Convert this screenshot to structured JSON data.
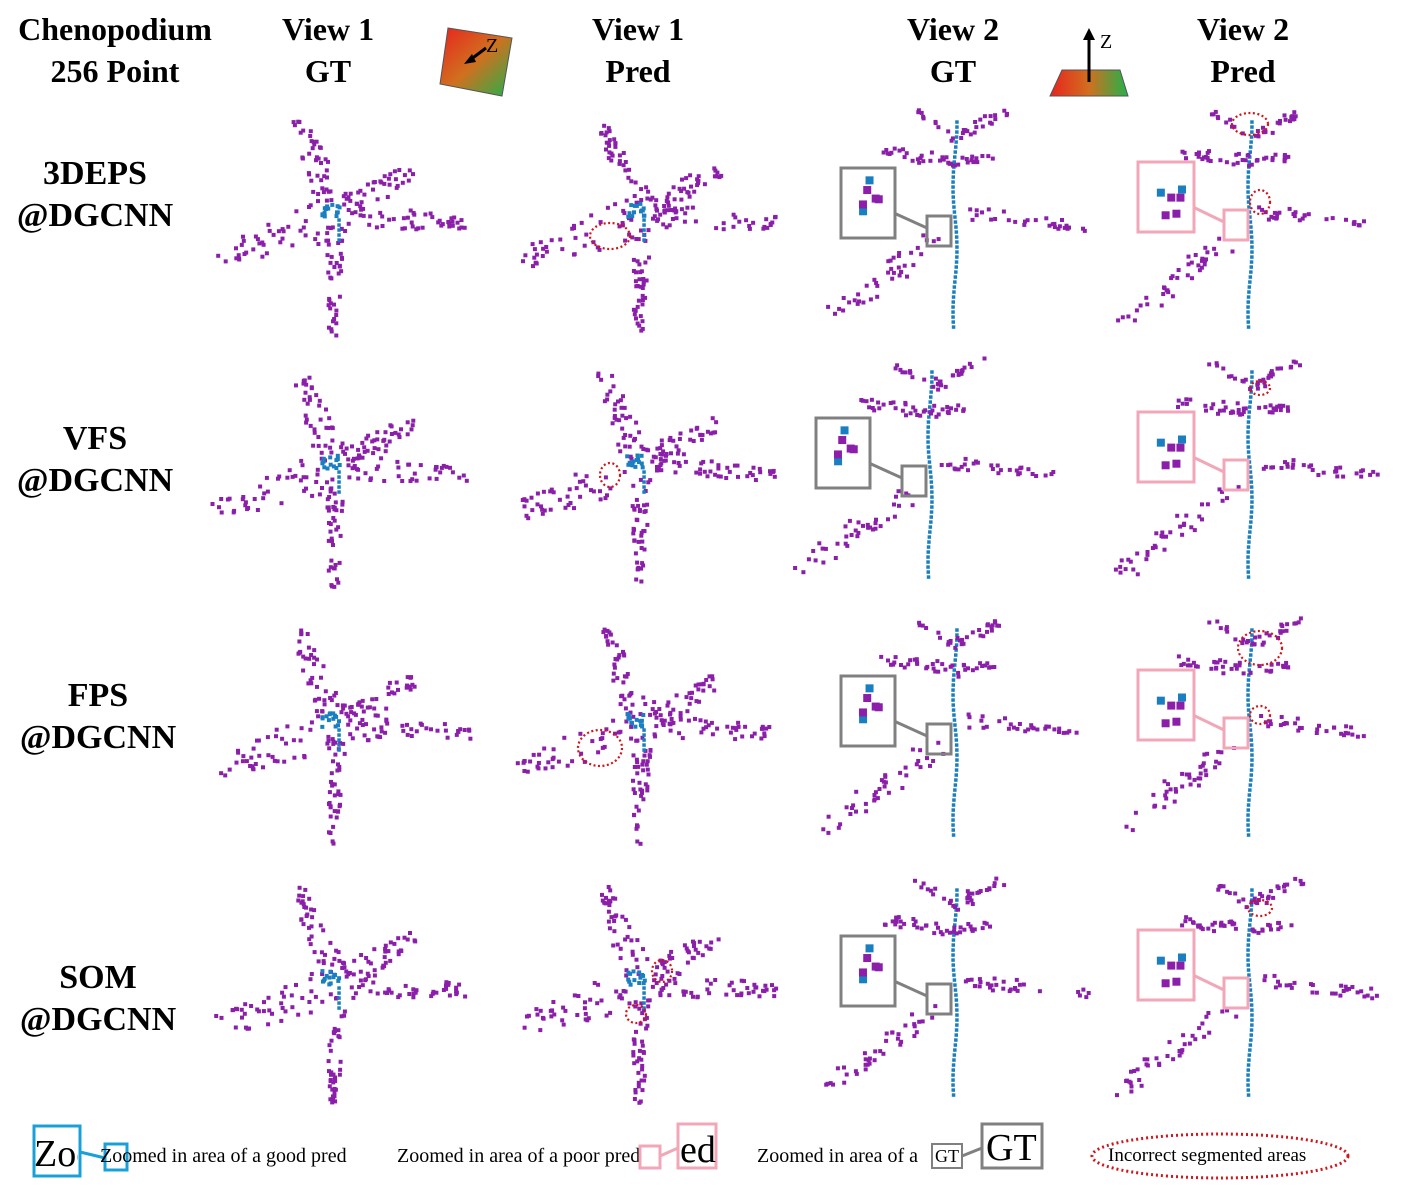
{
  "dataset_title": [
    "Chenopodium",
    "256 Point"
  ],
  "columns": [
    {
      "line1": "View 1",
      "line2": "GT"
    },
    {
      "line1": "View 1",
      "line2": "Pred"
    },
    {
      "line1": "View 2",
      "line2": "GT"
    },
    {
      "line1": "View 2",
      "line2": "Pred"
    }
  ],
  "axis_label": "Z",
  "rows": [
    {
      "line1": "3DEPS",
      "line2": "@DGCNN"
    },
    {
      "line1": "VFS",
      "line2": "@DGCNN"
    },
    {
      "line1": "FPS",
      "line2": "@DGCNN"
    },
    {
      "line1": "SOM",
      "line2": "@DGCNN"
    }
  ],
  "legend": {
    "good_pred": "Zoomed in area of a good pred",
    "good_pred_inset": "Zoo",
    "poor_pred": "Zoomed in area of a poor pred",
    "poor_pred_inset": "ed",
    "gt": "Zoomed in area of a",
    "gt_small": "GT",
    "gt_inset": "GT",
    "incorrect": "Incorrect segmented areas"
  },
  "colors": {
    "leaf": "#8b1fa9",
    "stem": "#1a7fc1",
    "good_box": "#1aa0d8",
    "poor_box": "#f2a7b8",
    "gt_box": "#808080",
    "incorrect": "#d0151b"
  }
}
